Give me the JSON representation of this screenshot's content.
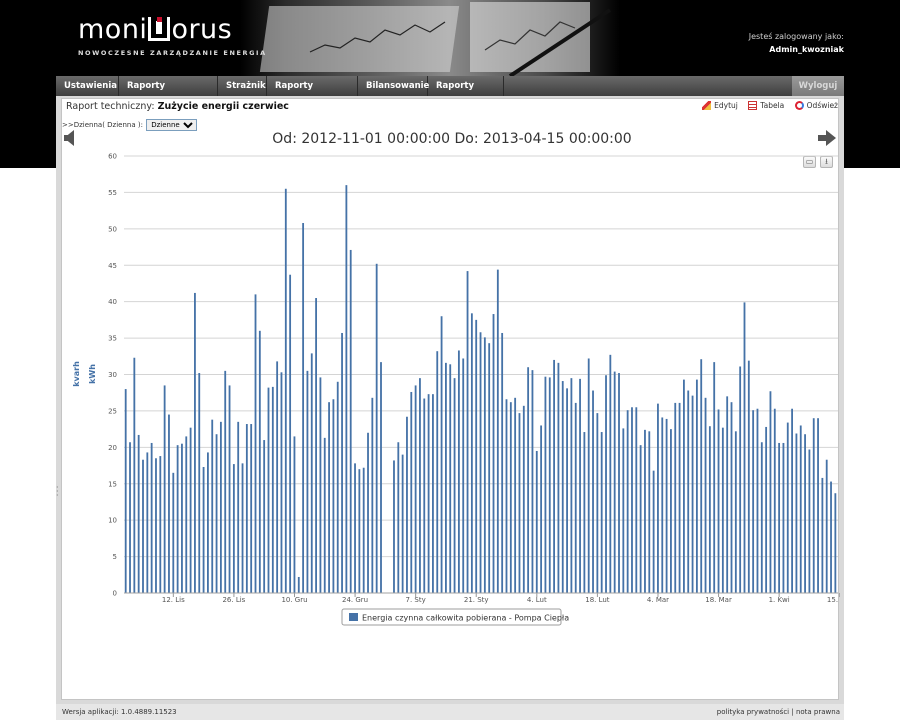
{
  "header": {
    "logo_text_left": "moni",
    "logo_text_right": "orus",
    "tagline": "NOWOCZESNE ZARZĄDZANIE ENERGIA",
    "logged_label": "Jesteś zalogowany jako:",
    "username": "Admin_kwozniak"
  },
  "nav": {
    "items": [
      "Ustawienia",
      "Raporty techniczne",
      "Strażnik",
      "Raporty kosztowe",
      "Bilansowanie",
      "Raporty online"
    ],
    "logout": "Wyloguj się"
  },
  "report": {
    "title_prefix": "Raport techniczny:",
    "title_name": "Zużycie energii czerwiec",
    "interval_path": ">>Dzienna( Dzienna ):",
    "interval_selected": "Dzienne",
    "tools": [
      "Edytuj",
      "Tabela",
      "Odśwież"
    ]
  },
  "chart_data": {
    "type": "bar",
    "title": "Od: 2012-11-01 00:00:00 Do: 2013-04-15 00:00:00",
    "ylabel_outer": "kvarh",
    "ylabel_inner": "kWh",
    "ylim": [
      0,
      60
    ],
    "yticks": [
      0,
      5,
      10,
      15,
      20,
      25,
      30,
      35,
      40,
      45,
      50,
      55,
      60
    ],
    "xtick_labels": [
      "12. Lis",
      "26. Lis",
      "10. Gru",
      "24. Gru",
      "7. Sty",
      "21. Sty",
      "4. Lut",
      "18. Lut",
      "4. Mar",
      "18. Mar",
      "1. Kwi",
      "15. Kwi"
    ],
    "grid": true,
    "legend_position": "bottom-center",
    "series": [
      {
        "name": "Energia czynna całkowita pobierana - Pompa Ciepła",
        "color": "#4572a7",
        "values": [
          28,
          20.7,
          32.3,
          21.7,
          18.3,
          19.3,
          20.6,
          18.5,
          18.8,
          28.5,
          24.5,
          16.5,
          20.3,
          20.5,
          21.5,
          22.7,
          41.2,
          30.2,
          17.3,
          19.3,
          23.8,
          21.8,
          23.5,
          30.5,
          28.5,
          17.7,
          23.5,
          17.8,
          23.2,
          23.2,
          41,
          36,
          21,
          28.2,
          28.3,
          31.8,
          30.3,
          55.5,
          43.7,
          21.5,
          2.2,
          50.8,
          30.5,
          32.9,
          40.5,
          29.6,
          21.3,
          26.2,
          26.6,
          29,
          35.7,
          56,
          47.1,
          17.8,
          17,
          17.2,
          22,
          26.8,
          45.2,
          31.7,
          0,
          0,
          18.2,
          20.7,
          19,
          24.2,
          27.6,
          28.5,
          29.5,
          26.7,
          27.3,
          27.3,
          33.2,
          38,
          31.6,
          31.4,
          29.5,
          33.3,
          32.2,
          44.2,
          38.4,
          37.5,
          35.8,
          35.1,
          34.3,
          38.3,
          44.4,
          35.7,
          26.6,
          26.2,
          26.8,
          24.7,
          25.7,
          31,
          30.6,
          19.5,
          23,
          29.7,
          29.6,
          32,
          31.6,
          29.1,
          28.1,
          29.5,
          26.1,
          29.4,
          22.1,
          32.2,
          27.8,
          24.7,
          22.1,
          29.9,
          32.7,
          30.4,
          30.2,
          22.6,
          25.1,
          25.5,
          25.5,
          20.3,
          22.4,
          22.2,
          16.8,
          26,
          24.1,
          23.9,
          22.5,
          26.1,
          26.1,
          29.3,
          27.8,
          27.1,
          29.3,
          32.1,
          26.8,
          22.9,
          31.7,
          25.2,
          22.7,
          27,
          26.2,
          22.2,
          31.1,
          39.9,
          31.9,
          25.1,
          25.3,
          20.7,
          22.8,
          27.7,
          25.3,
          20.6,
          20.6,
          23.4,
          25.3,
          21.9,
          23,
          21.8,
          19.7,
          24,
          24,
          15.8,
          18.3,
          15.3,
          13.7
        ]
      }
    ]
  },
  "chart_buttons": [
    "print-icon",
    "download-icon"
  ],
  "footer": {
    "version": "Wersja aplikacji: 1.0.4889.11523",
    "link_privacy": "polityka prywatności",
    "separator": "|",
    "link_legal": "nota prawna"
  },
  "colors": {
    "bar": "#4572a7",
    "axis_title": "#4572a7",
    "brand_red": "#c8102e"
  }
}
